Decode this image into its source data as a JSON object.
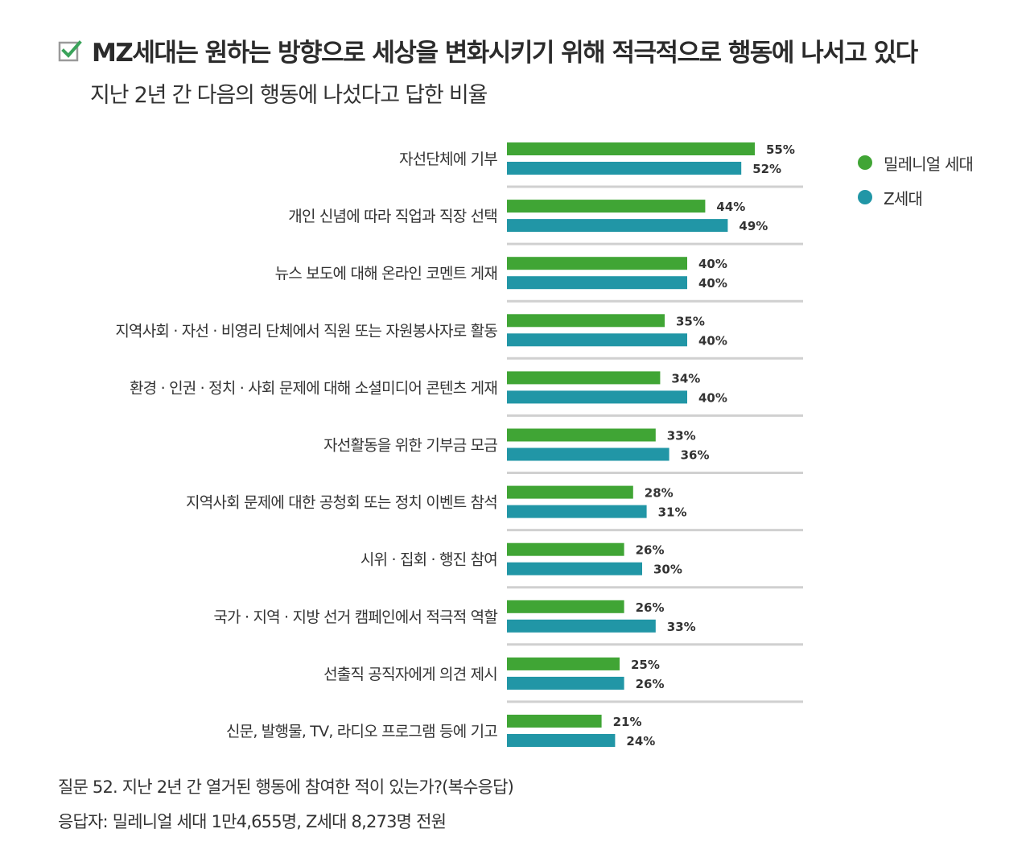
{
  "header": {
    "check_icon": "checkbox-checked-icon",
    "title": "MZ세대는 원하는 방향으로 세상을 변화시키기 위해 적극적으로 행동에 나서고 있다",
    "subtitle": "지난 2년 간 다음의 행동에 나섰다고 답한 비율"
  },
  "colors": {
    "millennial": "#40a535",
    "genz": "#2196a6",
    "separator": "#d0d0d0",
    "check": "#3aa35a"
  },
  "chart_data": {
    "type": "bar",
    "orientation": "horizontal",
    "categories": [
      "자선단체에 기부",
      "개인 신념에 따라 직업과 직장 선택",
      "뉴스 보도에 대해 온라인 코멘트 게재",
      "지역사회 · 자선 · 비영리 단체에서 직원 또는 자원봉사자로 활동",
      "환경 · 인권 · 정치 · 사회 문제에 대해 소셜미디어 콘텐츠 게재",
      "자선활동을 위한 기부금 모금",
      "지역사회 문제에 대한 공청회 또는 정치 이벤트 참석",
      "시위 · 집회 · 행진 참여",
      "국가 · 지역 · 지방 선거 캠페인에서 적극적 역할",
      "선출직 공직자에게 의견 제시",
      "신문, 발행물, TV, 라디오 프로그램 등에 기고"
    ],
    "series": [
      {
        "name": "밀레니얼 세대",
        "values": [
          55,
          44,
          40,
          35,
          34,
          33,
          28,
          26,
          26,
          25,
          21
        ]
      },
      {
        "name": "Z세대",
        "values": [
          52,
          49,
          40,
          40,
          40,
          36,
          31,
          30,
          33,
          26,
          24
        ]
      }
    ],
    "value_suffix": "%",
    "legend_position": "top-right",
    "grid": false
  },
  "legend": {
    "millennial": "밀레니얼 세대",
    "genz": "Z세대"
  },
  "footnotes": {
    "question": "질문 52. 지난 2년 간 열거된 행동에 참여한 적이 있는가?(복수응답)",
    "respondents": "응답자: 밀레니얼 세대 1만4,655명, Z세대 8,273명 전원"
  }
}
